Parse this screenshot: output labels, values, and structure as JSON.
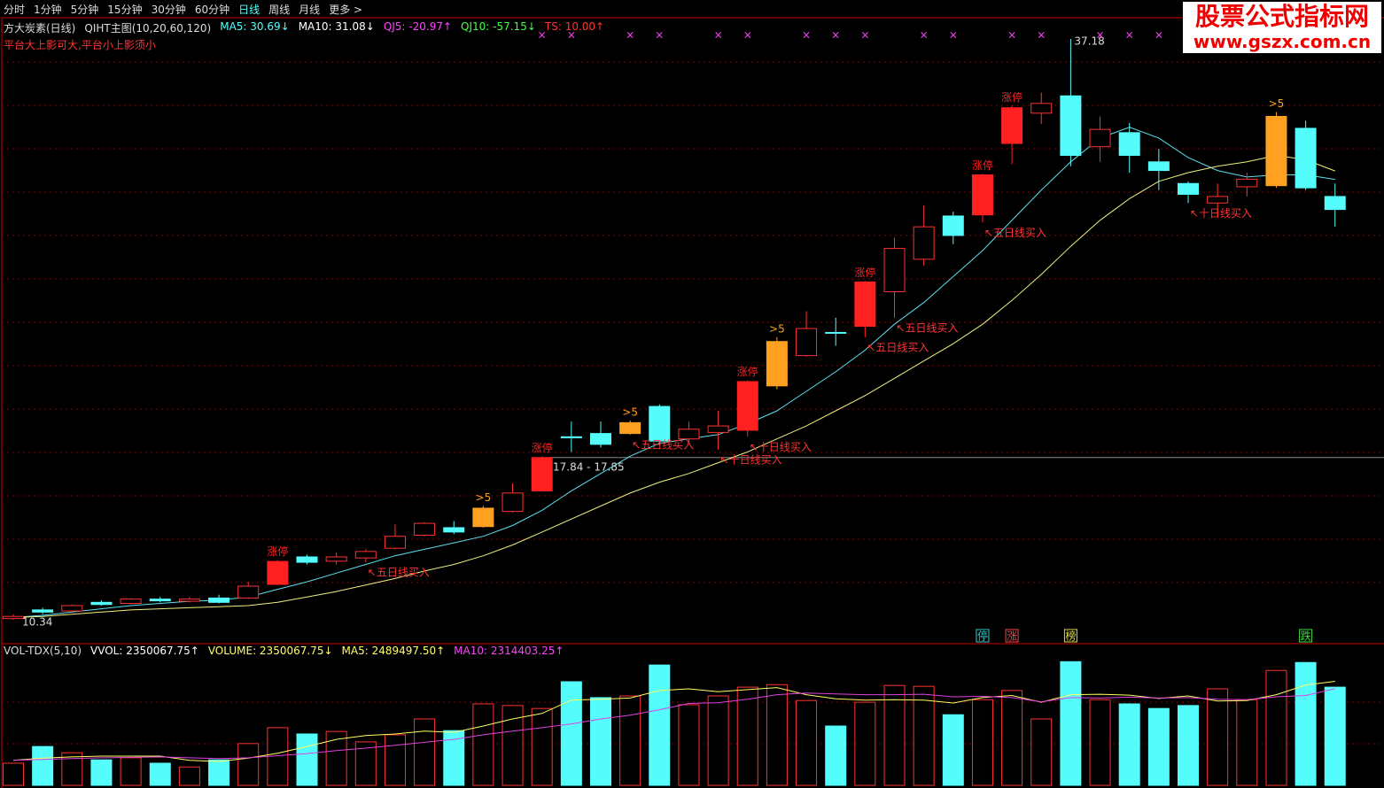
{
  "menu": {
    "items": [
      "分时",
      "1分钟",
      "5分钟",
      "15分钟",
      "30分钟",
      "60分钟",
      "日线",
      "周线",
      "月线",
      "更多 >"
    ],
    "active": 6
  },
  "watermark": {
    "title": "股票公式指标网",
    "url": "www.gszx.com.cn"
  },
  "chart_data": {
    "type": "candlestick",
    "title": "方大炭素(日线)",
    "indicator": "QIHT主图(10,20,60,120)",
    "legend": [
      {
        "text": "MA5: 30.69↓",
        "color": "#5ff"
      },
      {
        "text": "MA10: 31.08↓",
        "color": "#fff"
      },
      {
        "text": "QJ5: -20.97↑",
        "color": "#f4f"
      },
      {
        "text": "QJ10: -57.15↓",
        "color": "#4f4"
      },
      {
        "text": "TS: 10.00↑",
        "color": "#f33"
      }
    ],
    "note": "平台大上影可大,平台小上影须小",
    "open": [
      10.4,
      10.8,
      10.75,
      11.15,
      11.1,
      11.3,
      11.2,
      11.35,
      11.35,
      11.98,
      13.25,
      13.05,
      13.2,
      13.65,
      14.25,
      14.6,
      14.65,
      15.35,
      16.3,
      18.8,
      18.95,
      18.95,
      20.2,
      18.7,
      19.0,
      19.1,
      21.15,
      22.55,
      23.62,
      23.9,
      25.5,
      27.0,
      29.0,
      29.05,
      32.35,
      33.75,
      34.55,
      32.2,
      32.85,
      31.5,
      30.5,
      29.6,
      30.35,
      30.4,
      33.05,
      29.9
    ],
    "high": [
      10.6,
      10.9,
      11.05,
      11.25,
      11.35,
      11.4,
      11.4,
      11.5,
      12.1,
      13.1,
      13.35,
      13.45,
      13.6,
      14.75,
      14.85,
      14.9,
      15.6,
      16.65,
      17.9,
      19.5,
      19.5,
      19.55,
      20.3,
      19.5,
      20.0,
      21.4,
      23.4,
      24.6,
      24.3,
      26.0,
      28.0,
      29.5,
      29.2,
      30.95,
      34.1,
      34.7,
      37.18,
      33.6,
      33.3,
      32.1,
      30.6,
      30.5,
      31.0,
      33.8,
      33.4,
      30.5
    ],
    "low": [
      10.34,
      10.6,
      10.7,
      11.0,
      11.05,
      11.15,
      11.15,
      11.1,
      11.3,
      11.95,
      12.9,
      12.9,
      13.0,
      13.6,
      14.2,
      14.3,
      14.6,
      15.3,
      16.3,
      18.1,
      18.3,
      18.9,
      18.4,
      18.55,
      18.2,
      18.8,
      21.0,
      22.5,
      23.0,
      23.4,
      24.3,
      26.7,
      27.7,
      28.7,
      31.4,
      33.25,
      31.3,
      31.5,
      31.0,
      30.2,
      29.6,
      29.0,
      29.9,
      30.3,
      30.2,
      28.5
    ],
    "close": [
      10.5,
      10.7,
      11.0,
      11.05,
      11.3,
      11.22,
      11.3,
      11.15,
      11.9,
      13.04,
      13.0,
      13.25,
      13.5,
      14.2,
      14.8,
      14.4,
      15.5,
      16.2,
      17.84,
      18.75,
      18.45,
      19.45,
      18.6,
      19.15,
      19.3,
      21.35,
      23.2,
      23.8,
      23.58,
      25.95,
      27.5,
      28.5,
      28.1,
      30.9,
      34.0,
      34.2,
      31.8,
      33.0,
      31.8,
      31.1,
      30.0,
      29.9,
      30.7,
      33.6,
      30.3,
      29.3
    ],
    "up_color": "#ff3232",
    "down_color": "#54fcfc",
    "ma5": {
      "color": "#5ce0f0",
      "values": [
        10.45,
        10.55,
        10.7,
        10.85,
        11.0,
        11.1,
        11.2,
        11.25,
        11.4,
        11.75,
        12.1,
        12.5,
        12.9,
        13.3,
        13.6,
        13.9,
        14.2,
        14.7,
        15.4,
        16.3,
        17.1,
        17.9,
        18.5,
        18.7,
        18.9,
        19.4,
        20.0,
        20.9,
        21.8,
        22.8,
        24.0,
        25.0,
        26.2,
        27.4,
        28.8,
        30.2,
        31.5,
        32.6,
        33.1,
        32.6,
        31.7,
        31.1,
        30.8,
        30.9,
        30.9,
        30.69
      ]
    },
    "ma10": {
      "color": "#f0f080",
      "values": [
        10.45,
        10.5,
        10.6,
        10.7,
        10.8,
        10.85,
        10.9,
        10.95,
        11.0,
        11.15,
        11.4,
        11.65,
        11.95,
        12.25,
        12.6,
        12.9,
        13.3,
        13.8,
        14.4,
        15.0,
        15.6,
        16.2,
        16.7,
        17.1,
        17.6,
        18.1,
        18.7,
        19.3,
        20.0,
        20.7,
        21.5,
        22.3,
        23.1,
        24.0,
        25.1,
        26.3,
        27.6,
        28.8,
        29.8,
        30.6,
        31.0,
        31.3,
        31.5,
        31.8,
        31.6,
        31.08
      ]
    },
    "ylim": [
      9.24,
      38.16
    ],
    "tags": [
      {
        "index": 9,
        "text": "涨停",
        "color": "#ff2020"
      },
      {
        "index": 16,
        "text": ">5",
        "color": "#ffa020"
      },
      {
        "index": 18,
        "text": "涨停",
        "color": "#ff2020"
      },
      {
        "index": 21,
        "text": ">5",
        "color": "#ffa020"
      },
      {
        "index": 25,
        "text": "涨停",
        "color": "#ff2020"
      },
      {
        "index": 26,
        "text": ">5",
        "color": "#ffa020"
      },
      {
        "index": 29,
        "text": "涨停",
        "color": "#ff2020"
      },
      {
        "index": 33,
        "text": "涨停",
        "color": "#ff2020"
      },
      {
        "index": 34,
        "text": "涨停",
        "color": "#ff2020"
      },
      {
        "index": 43,
        "text": ">5",
        "color": "#ffa020"
      }
    ],
    "signals": [
      {
        "index": 12,
        "text": "↖五日线买入"
      },
      {
        "index": 21,
        "text": "↖五日线买入"
      },
      {
        "index": 24,
        "text": "↖十日线买入"
      },
      {
        "index": 25,
        "text": "↖十日线买入"
      },
      {
        "index": 29,
        "text": "↖五日线买入"
      },
      {
        "index": 30,
        "text": "↖五日线买入"
      },
      {
        "index": 33,
        "text": "↖五日线买入"
      },
      {
        "index": 40,
        "text": "↖十日线买入"
      }
    ],
    "high_label": {
      "index": 36,
      "text": "37.18"
    },
    "low_label": {
      "index": 0,
      "text": "10.34"
    },
    "price_line": {
      "value": 17.84,
      "label": "17.84 - 17.85"
    },
    "x_markers": {
      "symbol": "×",
      "indices": [
        18,
        19,
        21,
        22,
        24,
        25,
        27,
        28,
        29,
        31,
        32,
        34,
        35,
        37,
        38,
        39
      ]
    },
    "badges": [
      {
        "index": 33,
        "text": "停",
        "color": "#3cc"
      },
      {
        "index": 34,
        "text": "涨",
        "color": "#f44"
      },
      {
        "index": 36,
        "text": "榜",
        "color": "#dd4"
      },
      {
        "index": 44,
        "text": "跌",
        "color": "#4d4"
      }
    ]
  },
  "volume_chart": {
    "type": "bar",
    "title": "VOL-TDX(5,10)",
    "legend": [
      {
        "text": "VVOL: 2350067.75↑",
        "color": "#fff"
      },
      {
        "text": "VOLUME: 2350067.75↓",
        "color": "#ff6"
      },
      {
        "text": "MA5: 2489497.50↑",
        "color": "#ff6"
      },
      {
        "text": "MA10: 2314403.25↑",
        "color": "#f4f"
      }
    ],
    "values": [
      530000,
      930000,
      780000,
      610000,
      660000,
      530000,
      440000,
      610000,
      1000000,
      1380000,
      1230000,
      1290000,
      1040000,
      1210000,
      1590000,
      1310000,
      1950000,
      1910000,
      1840000,
      2480000,
      2100000,
      2140000,
      2880000,
      1930000,
      2140000,
      2350000,
      2410000,
      2030000,
      1420000,
      1990000,
      2390000,
      2370000,
      1690000,
      2050000,
      2270000,
      1590000,
      2960000,
      2050000,
      1950000,
      1840000,
      1910000,
      2310000,
      2050000,
      2750000,
      2940000,
      2350067.75
    ],
    "ma5": {
      "color": "#ffff60",
      "values": [
        600000,
        650000,
        680000,
        700000,
        700000,
        700000,
        600000,
        570000,
        650000,
        770000,
        930000,
        1100000,
        1190000,
        1230000,
        1300000,
        1270000,
        1420000,
        1590000,
        1720000,
        2040000,
        2060000,
        2090000,
        2270000,
        2310000,
        2240000,
        2290000,
        2340000,
        2170000,
        2070000,
        2040000,
        2050000,
        2040000,
        1970000,
        2100000,
        2150000,
        1990000,
        2170000,
        2180000,
        2160000,
        2080000,
        2140000,
        2020000,
        2030000,
        2170000,
        2400000,
        2489497.5
      ]
    },
    "ma10": {
      "color": "#e040e0",
      "values": [
        600000,
        620000,
        640000,
        660000,
        670000,
        680000,
        660000,
        640000,
        660000,
        710000,
        760000,
        830000,
        890000,
        960000,
        1030000,
        1100000,
        1210000,
        1300000,
        1380000,
        1470000,
        1590000,
        1680000,
        1810000,
        1960000,
        1980000,
        2060000,
        2170000,
        2210000,
        2190000,
        2170000,
        2170000,
        2180000,
        2120000,
        2130000,
        2100000,
        2000000,
        2100000,
        2090000,
        2110000,
        2090000,
        2100000,
        2060000,
        2050000,
        2120000,
        2150000,
        2314403.25
      ]
    },
    "ylim": [
      0,
      3200000
    ]
  }
}
